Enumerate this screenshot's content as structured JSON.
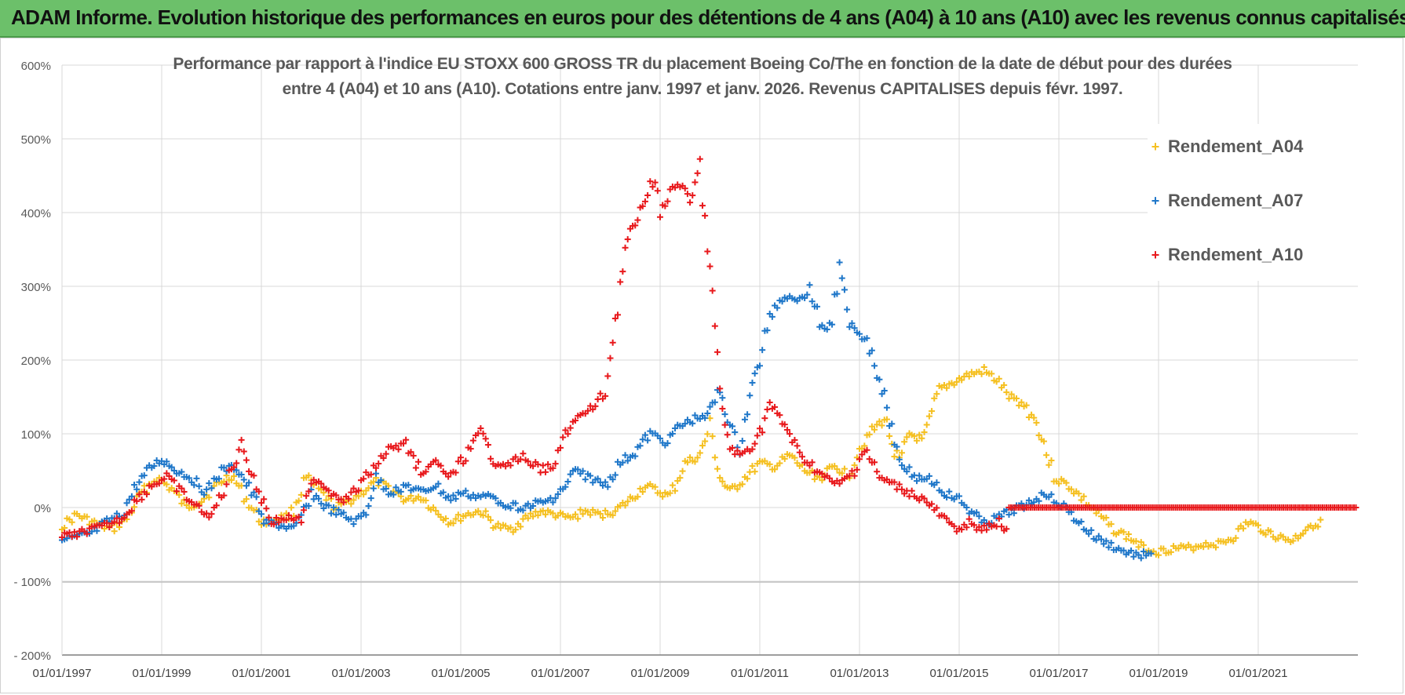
{
  "header": {
    "title": "ADAM Informe. Evolution historique des performances en euros pour des détentions de 4 ans (A04) à 10 ans (A10) avec les revenus connus capitalisés"
  },
  "chart_data": {
    "type": "scatter",
    "title_line1": "Performance par rapport à l'indice EU STOXX 600 GROSS TR  du placement Boeing Co/The en fonction de la date de début pour des durées",
    "title_line2": "entre 4 (A04) et 10 ans (A10).  Cotations entre janv. 1997 et janv. 2026. Revenus CAPITALISES depuis févr. 1997.",
    "xlabel": "",
    "ylabel": "",
    "x_range": [
      1997.0,
      2023.0
    ],
    "ylim": [
      -200,
      600
    ],
    "y_ticks": [
      600,
      500,
      400,
      300,
      200,
      100,
      0,
      -100,
      -200
    ],
    "y_tick_labels": [
      "600%",
      "500%",
      "400%",
      "300%",
      "200%",
      "100%",
      "0%",
      "- 100%",
      "- 200%"
    ],
    "x_ticks": [
      1997,
      1999,
      2001,
      2003,
      2005,
      2007,
      2009,
      2011,
      2013,
      2015,
      2017,
      2019,
      2021
    ],
    "x_tick_labels": [
      "01/01/1997",
      "01/01/1999",
      "01/01/2001",
      "01/01/2003",
      "01/01/2005",
      "01/01/2007",
      "01/01/2009",
      "01/01/2011",
      "01/01/2013",
      "01/01/2015",
      "01/01/2017",
      "01/01/2019",
      "01/01/2021"
    ],
    "grid": true,
    "legend_position": "top-right",
    "series": [
      {
        "name": "Rendement_A04",
        "color": "#f5c021",
        "x": [
          1997.0,
          1997.3,
          1997.6,
          1998.0,
          1998.3,
          1998.6,
          1998.9,
          1999.2,
          1999.5,
          1999.8,
          2000.1,
          2000.4,
          2000.7,
          2001.0,
          2001.3,
          2001.6,
          2001.9,
          2002.2,
          2002.5,
          2002.8,
          2003.0,
          2003.3,
          2003.6,
          2003.9,
          2004.2,
          2004.5,
          2004.8,
          2005.1,
          2005.4,
          2005.7,
          2006.0,
          2006.3,
          2006.6,
          2006.9,
          2007.2,
          2007.5,
          2007.8,
          2008.1,
          2008.4,
          2008.7,
          2009.0,
          2009.2,
          2009.5,
          2009.8,
          2010.0,
          2010.2,
          2010.4,
          2010.7,
          2011.0,
          2011.3,
          2011.6,
          2011.9,
          2012.2,
          2012.5,
          2012.8,
          2013.0,
          2013.2,
          2013.5,
          2013.8,
          2014.0,
          2014.3,
          2014.6,
          2014.9,
          2015.2,
          2015.5,
          2015.8,
          2016.0,
          2016.3,
          2016.6,
          2016.9,
          2017.2,
          2017.5,
          2017.8,
          2018.1,
          2018.4,
          2018.7,
          2019.0,
          2019.3,
          2019.6,
          2019.9,
          2020.2,
          2020.5,
          2020.8,
          2021.1,
          2021.4,
          2021.7,
          2022.0,
          2022.3
        ],
        "values": [
          -25,
          -10,
          -20,
          -30,
          -15,
          20,
          40,
          25,
          0,
          10,
          30,
          45,
          10,
          -20,
          -15,
          -10,
          40,
          20,
          0,
          10,
          20,
          35,
          25,
          10,
          15,
          -5,
          -20,
          -10,
          -5,
          -25,
          -30,
          -15,
          -5,
          -10,
          -15,
          -5,
          -10,
          -5,
          10,
          30,
          20,
          15,
          60,
          70,
          110,
          40,
          20,
          40,
          60,
          55,
          70,
          50,
          40,
          55,
          45,
          80,
          100,
          120,
          60,
          100,
          90,
          160,
          170,
          180,
          185,
          170,
          150,
          140,
          110,
          40,
          30,
          10,
          -10,
          -30,
          -40,
          -55,
          -60,
          -55,
          -55,
          -50,
          -50,
          -40,
          -20,
          -30,
          -40,
          -45,
          -25,
          -20
        ]
      },
      {
        "name": "Rendement_A07",
        "color": "#1f77c9",
        "x": [
          1997.0,
          1997.3,
          1997.6,
          1997.9,
          1998.2,
          1998.5,
          1998.8,
          1999.0,
          1999.3,
          1999.6,
          1999.9,
          2000.2,
          2000.5,
          2000.8,
          2001.1,
          2001.4,
          2001.7,
          2002.0,
          2002.3,
          2002.6,
          2002.9,
          2003.1,
          2003.3,
          2003.6,
          2003.9,
          2004.2,
          2004.5,
          2004.8,
          2005.0,
          2005.3,
          2005.6,
          2005.9,
          2006.2,
          2006.5,
          2006.8,
          2007.0,
          2007.3,
          2007.6,
          2007.9,
          2008.2,
          2008.5,
          2008.8,
          2009.1,
          2009.4,
          2009.7,
          2010.0,
          2010.2,
          2010.4,
          2010.6,
          2010.8,
          2011.0,
          2011.2,
          2011.4,
          2011.6,
          2011.8,
          2012.0,
          2012.2,
          2012.4,
          2012.6,
          2012.8,
          2013.0,
          2013.2,
          2013.5,
          2013.8,
          2014.1,
          2014.4,
          2014.7,
          2015.0,
          2015.3,
          2015.6,
          2015.9,
          2016.2,
          2016.5,
          2016.8,
          2017.1,
          2017.4,
          2017.7,
          2018.0,
          2018.3,
          2018.6,
          2018.9
        ],
        "values": [
          -45,
          -40,
          -35,
          -20,
          -10,
          30,
          55,
          65,
          50,
          40,
          20,
          50,
          55,
          20,
          -20,
          -25,
          -30,
          20,
          0,
          -10,
          -20,
          -5,
          40,
          20,
          30,
          20,
          30,
          10,
          20,
          15,
          15,
          5,
          0,
          5,
          10,
          20,
          50,
          40,
          30,
          60,
          75,
          100,
          90,
          110,
          120,
          130,
          160,
          110,
          80,
          150,
          200,
          260,
          280,
          290,
          280,
          300,
          250,
          240,
          320,
          250,
          240,
          220,
          150,
          70,
          40,
          40,
          20,
          10,
          -10,
          -20,
          -10,
          0,
          10,
          20,
          0,
          -20,
          -40,
          -50,
          -60,
          -65,
          -60
        ]
      },
      {
        "name": "Rendement_A10",
        "color": "#e8191c",
        "x": [
          1997.0,
          1997.3,
          1997.6,
          1997.9,
          1998.2,
          1998.5,
          1998.8,
          1999.1,
          1999.4,
          1999.7,
          2000.0,
          2000.3,
          2000.6,
          2000.9,
          2001.2,
          2001.5,
          2001.8,
          2002.1,
          2002.4,
          2002.7,
          2003.0,
          2003.3,
          2003.6,
          2003.9,
          2004.2,
          2004.5,
          2004.8,
          2005.1,
          2005.4,
          2005.7,
          2006.0,
          2006.3,
          2006.6,
          2006.9,
          2007.1,
          2007.3,
          2007.6,
          2007.9,
          2008.1,
          2008.3,
          2008.5,
          2008.7,
          2008.9,
          2009.0,
          2009.2,
          2009.4,
          2009.6,
          2009.8,
          2010.0,
          2010.2,
          2010.4,
          2010.6,
          2010.8,
          2011.0,
          2011.2,
          2011.4,
          2011.6,
          2011.8,
          2012.0,
          2012.3,
          2012.6,
          2012.9,
          2013.1,
          2013.4,
          2013.7,
          2014.0,
          2014.3,
          2014.6,
          2014.9,
          2015.2,
          2015.5,
          2015.8,
          2016.0
        ],
        "values": [
          -40,
          -35,
          -30,
          -25,
          -15,
          10,
          30,
          40,
          20,
          0,
          -10,
          30,
          90,
          30,
          -20,
          -15,
          -10,
          40,
          20,
          10,
          30,
          60,
          80,
          85,
          50,
          60,
          40,
          70,
          100,
          60,
          60,
          70,
          50,
          60,
          100,
          120,
          130,
          160,
          250,
          350,
          390,
          420,
          450,
          400,
          430,
          440,
          410,
          460,
          320,
          150,
          80,
          70,
          80,
          100,
          140,
          120,
          100,
          70,
          60,
          40,
          30,
          50,
          80,
          40,
          30,
          20,
          10,
          -10,
          -30,
          -20,
          -30,
          -20,
          -40
        ]
      },
      {
        "name": "Rendement_A10 (flat)",
        "legend": false,
        "color": "#e8191c",
        "x": [
          2016.0,
          2023.0
        ],
        "values": [
          0,
          0
        ]
      }
    ]
  },
  "legend": {
    "items": [
      {
        "label": "Rendement_A04",
        "color": "#f5c021",
        "marker": "+"
      },
      {
        "label": "Rendement_A07",
        "color": "#1f77c9",
        "marker": "+"
      },
      {
        "label": "Rendement_A10",
        "color": "#e8191c",
        "marker": "+"
      }
    ]
  }
}
